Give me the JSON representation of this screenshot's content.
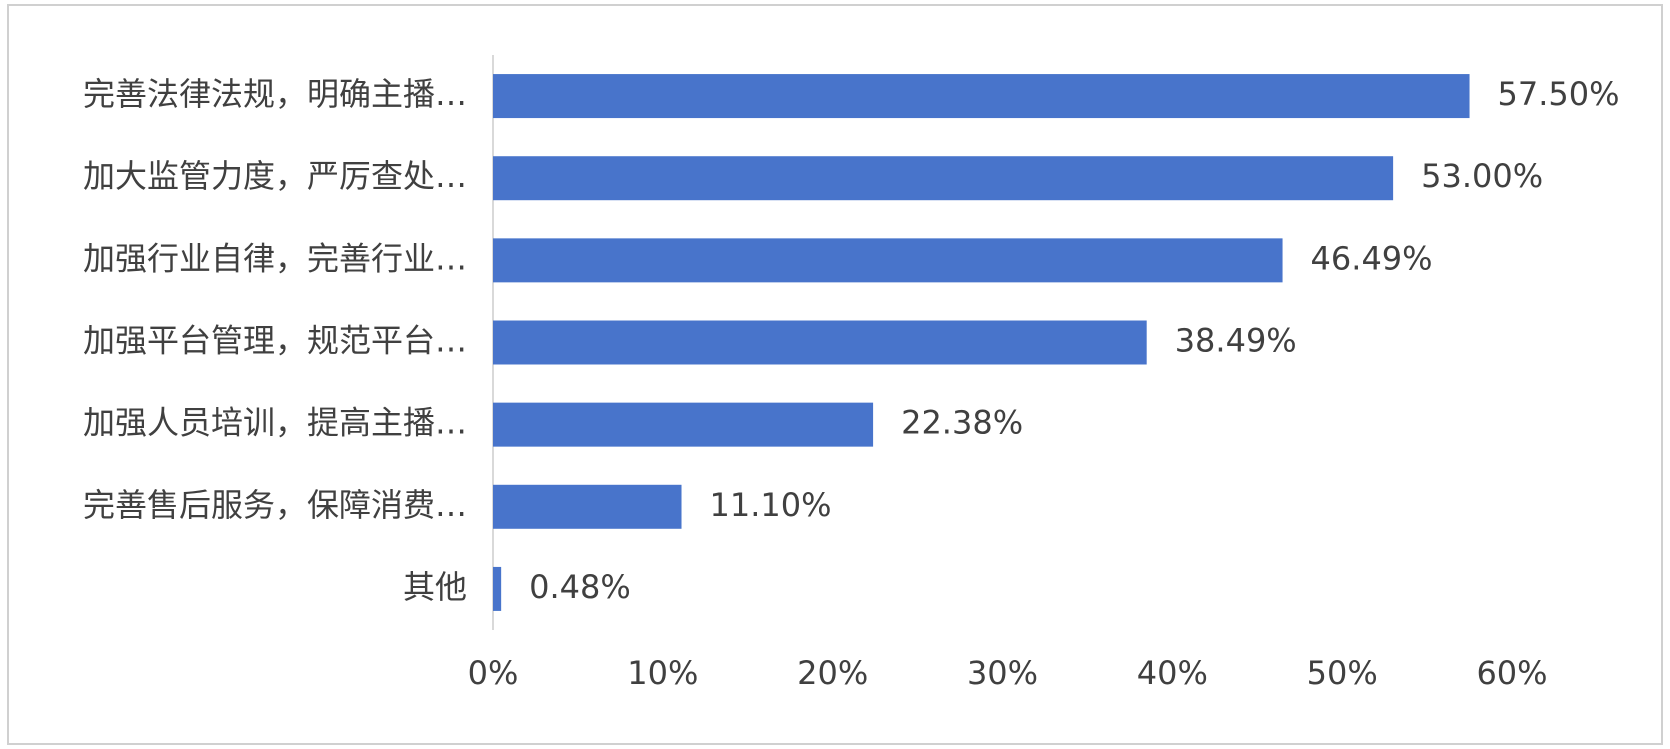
{
  "chart_data": {
    "type": "bar",
    "orientation": "horizontal",
    "categories": [
      "完善法律法规，明确主播…",
      "加大监管力度，严厉查处…",
      "加强行业自律，完善行业…",
      "加强平台管理，规范平台…",
      "加强人员培训，提高主播…",
      "完善售后服务，保障消费…",
      "其他"
    ],
    "values": [
      57.5,
      53.0,
      46.49,
      38.49,
      22.38,
      11.1,
      0.48
    ],
    "value_labels": [
      "57.50%",
      "53.00%",
      "46.49%",
      "38.49%",
      "22.38%",
      "11.10%",
      "0.48%"
    ],
    "color": "#4874cb",
    "xlim": [
      0,
      60
    ],
    "xticks": [
      {
        "value": 0,
        "label": "0%"
      },
      {
        "value": 10,
        "label": "10%"
      },
      {
        "value": 20,
        "label": "20%"
      },
      {
        "value": 30,
        "label": "30%"
      },
      {
        "value": 40,
        "label": "40%"
      },
      {
        "value": 50,
        "label": "50%"
      },
      {
        "value": 60,
        "label": "60%"
      }
    ],
    "grid": false
  }
}
